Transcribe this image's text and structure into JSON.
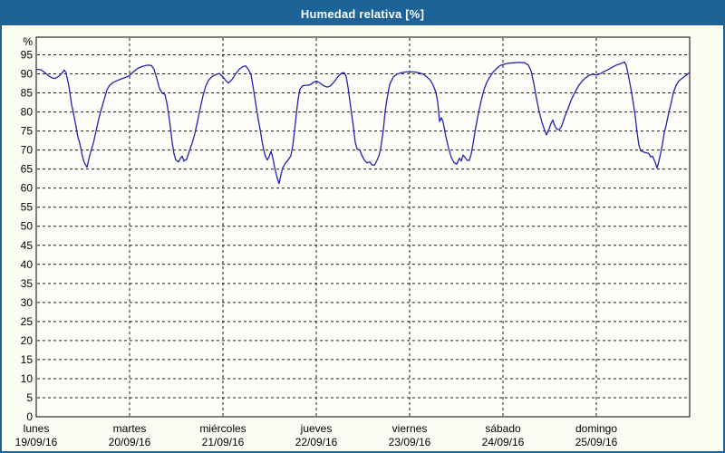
{
  "title": "Humedad relativa [%]",
  "colors": {
    "frame": "#1c6398",
    "titlebar_bg": "#1c6398",
    "title_text": "#ffffff",
    "chart_bg": "#fcfcf5",
    "plot_bg": "#fefefa",
    "grid": "#1a1a1a",
    "line": "#2222b2",
    "text": "#000000"
  },
  "chart_data": {
    "type": "line",
    "title": "Humedad relativa [%]",
    "xlabel": "",
    "ylabel": "%",
    "ylim": [
      0,
      100
    ],
    "y_tick_step": 5,
    "grid": "dashed, horizontal every 5% and vertical at each day boundary",
    "legend": "none",
    "y_ticks": [
      0,
      5,
      10,
      15,
      20,
      25,
      30,
      35,
      40,
      45,
      50,
      55,
      60,
      65,
      70,
      75,
      80,
      85,
      90,
      95
    ],
    "days": [
      {
        "name": "lunes",
        "date": "19/09/16"
      },
      {
        "name": "martes",
        "date": "20/09/16"
      },
      {
        "name": "miércoles",
        "date": "21/09/16"
      },
      {
        "name": "jueves",
        "date": "22/09/16"
      },
      {
        "name": "viernes",
        "date": "23/09/16"
      },
      {
        "name": "sábado",
        "date": "24/09/16"
      },
      {
        "name": "domingo",
        "date": "25/09/16"
      }
    ],
    "x_unit": "days from lunes 19/09/16 (0 = start of axis, 7 = end)",
    "series": [
      {
        "name": "Humedad relativa [%]",
        "color": "#2222b2",
        "points": [
          [
            0,
            91.2
          ],
          [
            0.049,
            91.1
          ],
          [
            0.087,
            90.4
          ],
          [
            0.136,
            89.4
          ],
          [
            0.175,
            88.9
          ],
          [
            0.204,
            88.8
          ],
          [
            0.243,
            89.4
          ],
          [
            0.272,
            90.1
          ],
          [
            0.301,
            91
          ],
          [
            0.32,
            90.2
          ],
          [
            0.35,
            86.8
          ],
          [
            0.379,
            82
          ],
          [
            0.398,
            79.7
          ],
          [
            0.417,
            77.3
          ],
          [
            0.447,
            73.4
          ],
          [
            0.466,
            71.8
          ],
          [
            0.495,
            68.3
          ],
          [
            0.515,
            66.7
          ],
          [
            0.544,
            65.5
          ],
          [
            0.573,
            68.6
          ],
          [
            0.592,
            70.2
          ],
          [
            0.612,
            71.8
          ],
          [
            0.641,
            75
          ],
          [
            0.67,
            78.2
          ],
          [
            0.699,
            80.9
          ],
          [
            0.728,
            83.3
          ],
          [
            0.757,
            85.8
          ],
          [
            0.786,
            87
          ],
          [
            0.825,
            87.8
          ],
          [
            0.874,
            88.3
          ],
          [
            0.922,
            88.8
          ],
          [
            0.971,
            89.2
          ],
          [
            1,
            89.6
          ],
          [
            1.039,
            90.5
          ],
          [
            1.078,
            91.3
          ],
          [
            1.117,
            91.8
          ],
          [
            1.155,
            92.1
          ],
          [
            1.194,
            92.3
          ],
          [
            1.233,
            92.2
          ],
          [
            1.262,
            91.2
          ],
          [
            1.291,
            88.8
          ],
          [
            1.32,
            86.2
          ],
          [
            1.35,
            84.9
          ],
          [
            1.379,
            84.6
          ],
          [
            1.398,
            82.5
          ],
          [
            1.417,
            79.5
          ],
          [
            1.437,
            76
          ],
          [
            1.456,
            72
          ],
          [
            1.476,
            69
          ],
          [
            1.495,
            67.4
          ],
          [
            1.524,
            66.9
          ],
          [
            1.544,
            67.8
          ],
          [
            1.563,
            68.4
          ],
          [
            1.583,
            67.1
          ],
          [
            1.612,
            67.6
          ],
          [
            1.641,
            69.8
          ],
          [
            1.67,
            71.8
          ],
          [
            1.699,
            74.3
          ],
          [
            1.728,
            77.6
          ],
          [
            1.757,
            81
          ],
          [
            1.786,
            84.3
          ],
          [
            1.816,
            86.8
          ],
          [
            1.845,
            88.3
          ],
          [
            1.883,
            89.3
          ],
          [
            1.922,
            89.8
          ],
          [
            1.961,
            90.1
          ],
          [
            2,
            89.2
          ],
          [
            2.029,
            88.3
          ],
          [
            2.058,
            87.6
          ],
          [
            2.097,
            88.5
          ],
          [
            2.136,
            90
          ],
          [
            2.175,
            91.2
          ],
          [
            2.214,
            91.9
          ],
          [
            2.243,
            92.1
          ],
          [
            2.272,
            91.2
          ],
          [
            2.301,
            89.8
          ],
          [
            2.32,
            87
          ],
          [
            2.34,
            84
          ],
          [
            2.359,
            81
          ],
          [
            2.379,
            78
          ],
          [
            2.398,
            75.5
          ],
          [
            2.417,
            72.5
          ],
          [
            2.437,
            70
          ],
          [
            2.456,
            68.3
          ],
          [
            2.476,
            67.4
          ],
          [
            2.495,
            68.3
          ],
          [
            2.515,
            69.7
          ],
          [
            2.534,
            68
          ],
          [
            2.553,
            65.5
          ],
          [
            2.573,
            63.5
          ],
          [
            2.592,
            61.8
          ],
          [
            2.602,
            61.2
          ],
          [
            2.621,
            63.5
          ],
          [
            2.64,
            65.3
          ],
          [
            2.67,
            66.6
          ],
          [
            2.699,
            67.4
          ],
          [
            2.728,
            68.5
          ],
          [
            2.748,
            71
          ],
          [
            2.767,
            75
          ],
          [
            2.786,
            79.5
          ],
          [
            2.806,
            83.5
          ],
          [
            2.825,
            86
          ],
          [
            2.854,
            86.9
          ],
          [
            2.893,
            87
          ],
          [
            2.932,
            87.1
          ],
          [
            2.971,
            87.8
          ],
          [
            3,
            88.1
          ],
          [
            3.039,
            87.6
          ],
          [
            3.078,
            86.9
          ],
          [
            3.117,
            86.5
          ],
          [
            3.155,
            86.9
          ],
          [
            3.194,
            88
          ],
          [
            3.233,
            89.3
          ],
          [
            3.272,
            90.2
          ],
          [
            3.301,
            90.3
          ],
          [
            3.32,
            89.3
          ],
          [
            3.34,
            86.5
          ],
          [
            3.359,
            83
          ],
          [
            3.379,
            79.5
          ],
          [
            3.398,
            76
          ],
          [
            3.417,
            72
          ],
          [
            3.437,
            70.3
          ],
          [
            3.466,
            70
          ],
          [
            3.485,
            68.8
          ],
          [
            3.515,
            67.4
          ],
          [
            3.544,
            66.6
          ],
          [
            3.573,
            66.9
          ],
          [
            3.592,
            66.2
          ],
          [
            3.621,
            66
          ],
          [
            3.641,
            66.8
          ],
          [
            3.67,
            68.4
          ],
          [
            3.689,
            70.3
          ],
          [
            3.718,
            75.3
          ],
          [
            3.738,
            80.2
          ],
          [
            3.757,
            83.4
          ],
          [
            3.786,
            87.2
          ],
          [
            3.825,
            89.2
          ],
          [
            3.864,
            89.9
          ],
          [
            3.913,
            90.3
          ],
          [
            3.961,
            90.5
          ],
          [
            4,
            90.5
          ],
          [
            4.049,
            90.5
          ],
          [
            4.097,
            90.3
          ],
          [
            4.146,
            89.9
          ],
          [
            4.184,
            89.2
          ],
          [
            4.223,
            88.3
          ],
          [
            4.252,
            87
          ],
          [
            4.281,
            85.2
          ],
          [
            4.301,
            82.6
          ],
          [
            4.32,
            77.5
          ],
          [
            4.34,
            78.5
          ],
          [
            4.359,
            77.3
          ],
          [
            4.388,
            73.5
          ],
          [
            4.417,
            70.5
          ],
          [
            4.447,
            68
          ],
          [
            4.476,
            66.7
          ],
          [
            4.505,
            66.3
          ],
          [
            4.534,
            67.9
          ],
          [
            4.553,
            67.1
          ],
          [
            4.573,
            68.7
          ],
          [
            4.592,
            68.1
          ],
          [
            4.621,
            67.2
          ],
          [
            4.641,
            67.4
          ],
          [
            4.66,
            69
          ],
          [
            4.679,
            71.5
          ],
          [
            4.709,
            76
          ],
          [
            4.738,
            79.8
          ],
          [
            4.767,
            83
          ],
          [
            4.796,
            85.8
          ],
          [
            4.825,
            87.7
          ],
          [
            4.854,
            89
          ],
          [
            4.893,
            90.4
          ],
          [
            4.932,
            91.4
          ],
          [
            4.971,
            92.2
          ],
          [
            5.01,
            92.5
          ],
          [
            5.058,
            92.8
          ],
          [
            5.117,
            92.9
          ],
          [
            5.175,
            93
          ],
          [
            5.233,
            92.9
          ],
          [
            5.272,
            92.3
          ],
          [
            5.301,
            90.8
          ],
          [
            5.33,
            87.5
          ],
          [
            5.359,
            83.5
          ],
          [
            5.388,
            80
          ],
          [
            5.417,
            77.3
          ],
          [
            5.447,
            75.2
          ],
          [
            5.466,
            74
          ],
          [
            5.495,
            75.6
          ],
          [
            5.515,
            77
          ],
          [
            5.534,
            77.9
          ],
          [
            5.553,
            76.4
          ],
          [
            5.573,
            75.6
          ],
          [
            5.602,
            75.3
          ],
          [
            5.631,
            76.4
          ],
          [
            5.66,
            78.6
          ],
          [
            5.699,
            81
          ],
          [
            5.728,
            83
          ],
          [
            5.767,
            85
          ],
          [
            5.806,
            86.7
          ],
          [
            5.845,
            88
          ],
          [
            5.883,
            88.9
          ],
          [
            5.922,
            89.6
          ],
          [
            5.961,
            89.9
          ],
          [
            6,
            89.7
          ],
          [
            6.029,
            89.9
          ],
          [
            6.068,
            90.4
          ],
          [
            6.117,
            91
          ],
          [
            6.165,
            91.7
          ],
          [
            6.214,
            92.3
          ],
          [
            6.262,
            92.7
          ],
          [
            6.301,
            93.1
          ],
          [
            6.32,
            92.3
          ],
          [
            6.34,
            90
          ],
          [
            6.359,
            87.6
          ],
          [
            6.379,
            85
          ],
          [
            6.398,
            82
          ],
          [
            6.417,
            78.8
          ],
          [
            6.437,
            74.5
          ],
          [
            6.456,
            71.3
          ],
          [
            6.476,
            69.8
          ],
          [
            6.505,
            69.5
          ],
          [
            6.534,
            69.3
          ],
          [
            6.563,
            69.1
          ],
          [
            6.583,
            68.2
          ],
          [
            6.602,
            68.4
          ],
          [
            6.631,
            66.8
          ],
          [
            6.65,
            65.3
          ],
          [
            6.67,
            67
          ],
          [
            6.689,
            69.2
          ],
          [
            6.709,
            71.6
          ],
          [
            6.728,
            74.6
          ],
          [
            6.748,
            76.4
          ],
          [
            6.767,
            78.8
          ],
          [
            6.796,
            81.8
          ],
          [
            6.825,
            85
          ],
          [
            6.854,
            87
          ],
          [
            6.883,
            88.1
          ],
          [
            6.913,
            88.7
          ],
          [
            6.951,
            89.4
          ],
          [
            6.99,
            90.2
          ]
        ]
      }
    ]
  }
}
